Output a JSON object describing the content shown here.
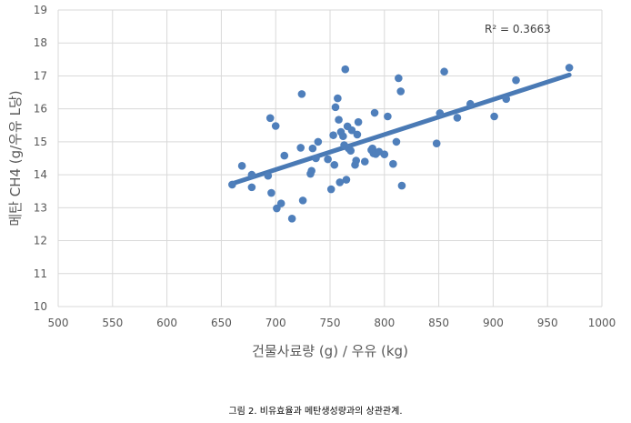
{
  "chart_data": {
    "type": "scatter",
    "xlabel": "건물사료량 (g) / 우유 (kg)",
    "ylabel": "메탄 CH4 (g/우유 L당)",
    "xlim": [
      500,
      1000
    ],
    "ylim": [
      10,
      19
    ],
    "x_ticks": [
      "500",
      "550",
      "600",
      "650",
      "700",
      "750",
      "800",
      "850",
      "900",
      "950",
      "1000"
    ],
    "y_ticks": [
      "10",
      "11",
      "12",
      "13",
      "14",
      "15",
      "16",
      "17",
      "18",
      "19"
    ],
    "grid": true,
    "annotation": "R² = 0.3663",
    "trendline": {
      "type": "linear",
      "x": [
        660,
        970
      ],
      "y": [
        13.73,
        17.03
      ]
    },
    "points": [
      [
        660,
        13.7
      ],
      [
        669,
        14.27
      ],
      [
        678,
        14.0
      ],
      [
        678,
        13.62
      ],
      [
        693,
        13.97
      ],
      [
        695,
        15.72
      ],
      [
        696,
        13.45
      ],
      [
        700,
        15.48
      ],
      [
        701,
        12.98
      ],
      [
        705,
        13.13
      ],
      [
        708,
        14.58
      ],
      [
        715,
        12.67
      ],
      [
        723,
        14.82
      ],
      [
        724,
        16.45
      ],
      [
        725,
        13.22
      ],
      [
        732,
        14.03
      ],
      [
        733,
        14.12
      ],
      [
        734,
        14.8
      ],
      [
        737,
        14.5
      ],
      [
        739,
        15.0
      ],
      [
        748,
        14.47
      ],
      [
        751,
        13.56
      ],
      [
        753,
        15.2
      ],
      [
        754,
        14.3
      ],
      [
        755,
        16.05
      ],
      [
        757,
        16.32
      ],
      [
        758,
        15.67
      ],
      [
        759,
        13.77
      ],
      [
        760,
        15.3
      ],
      [
        762,
        15.17
      ],
      [
        763,
        14.9
      ],
      [
        764,
        17.2
      ],
      [
        765,
        13.85
      ],
      [
        766,
        15.47
      ],
      [
        767,
        14.8
      ],
      [
        769,
        14.73
      ],
      [
        770,
        15.35
      ],
      [
        773,
        14.3
      ],
      [
        774,
        14.43
      ],
      [
        775,
        15.22
      ],
      [
        776,
        15.6
      ],
      [
        782,
        14.4
      ],
      [
        788,
        14.75
      ],
      [
        789,
        14.8
      ],
      [
        790,
        14.65
      ],
      [
        791,
        15.88
      ],
      [
        792,
        14.63
      ],
      [
        795,
        14.7
      ],
      [
        800,
        14.62
      ],
      [
        803,
        15.77
      ],
      [
        808,
        14.33
      ],
      [
        811,
        15.0
      ],
      [
        813,
        16.93
      ],
      [
        815,
        16.53
      ],
      [
        816,
        13.67
      ],
      [
        848,
        14.95
      ],
      [
        851,
        15.87
      ],
      [
        855,
        17.13
      ],
      [
        867,
        15.73
      ],
      [
        879,
        16.15
      ],
      [
        901,
        15.77
      ],
      [
        912,
        16.3
      ],
      [
        921,
        16.87
      ],
      [
        970,
        17.25
      ]
    ]
  },
  "caption": "그림 2. 비유효율과 메탄생성량과의 상관관계."
}
